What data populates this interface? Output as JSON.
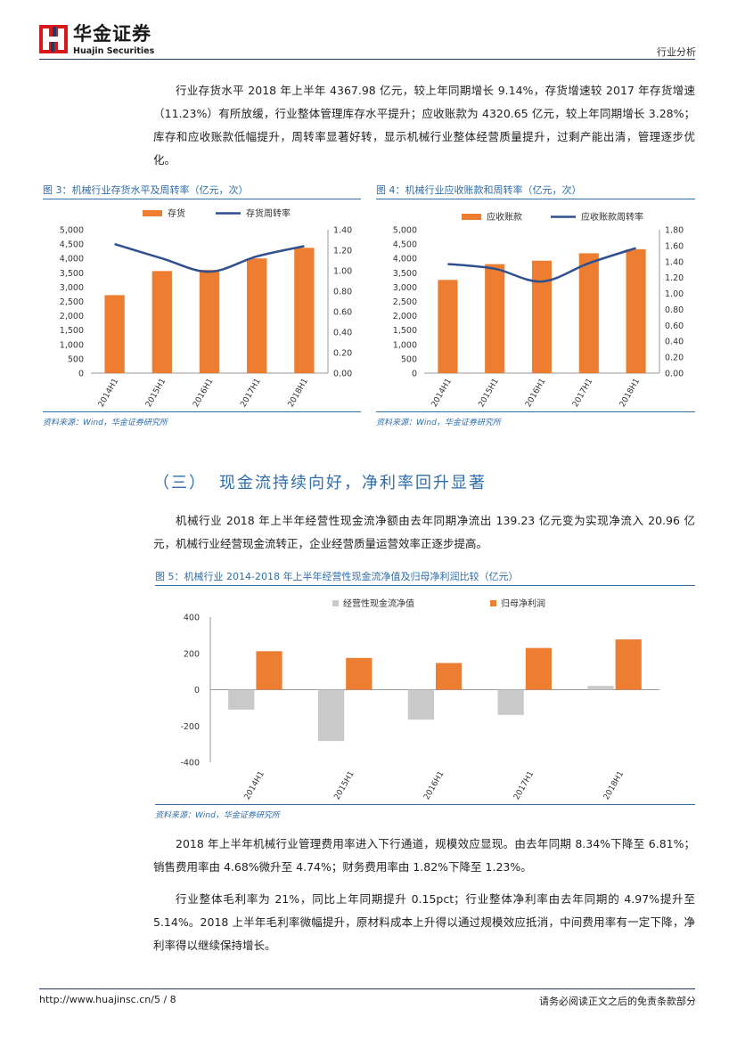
{
  "header": {
    "logo_cn": "华金证券",
    "logo_en": "Huajin Securities",
    "right_label": "行业分析"
  },
  "intro_paragraph": "行业存货水平 2018 年上半年 4367.98 亿元，较上年同期增长 9.14%，存货增速较 2017 年存货增速（11.23%）有所放缓，行业整体管理库存水平提升；应收账款为 4320.65 亿元，较上年同期增长 3.28%；库存和应收账款低幅提升，周转率显著好转，显示机械行业整体经营质量提升，过剩产能出清，管理逐步优化。",
  "figures": {
    "fig3": {
      "title": "图 3：机械行业存货水平及周转率（亿元，次）",
      "source": "资料来源：Wind，华金证券研究所"
    },
    "fig4": {
      "title": "图 4：机械行业应收账款和周转率（亿元，次）",
      "source": "资料来源：Wind，华金证券研究所"
    },
    "fig5": {
      "title": "图 5：机械行业 2014-2018 年上半年经营性现金流净值及归母净利润比较（亿元）",
      "source": "资料来源：Wind，华金证券研究所"
    }
  },
  "section": {
    "number": "（三）",
    "title": "现金流持续向好，净利率回升显著"
  },
  "cashflow_paragraph": "机械行业 2018 年上半年经营性现金流净额由去年同期净流出 139.23 亿元变为实现净流入 20.96 亿元，机械行业经营现金流转正，企业经营质量运营效率正逐步提高。",
  "paragraph_3": "2018 年上半年机械行业管理费用率进入下行通道，规模效应显现。由去年同期 8.34%下降至 6.81%；销售费用率由 4.68%微升至 4.74%；财务费用率由 1.82%下降至 1.23%。",
  "paragraph_4": "行业整体毛利率为 21%，同比上年同期提升 0.15pct；行业整体净利率由去年同期的 4.97%提升至 5.14%。2018 上半年毛利率微幅提升，原材料成本上升得以通过规模效应抵消，中间费用率有一定下降，净利率得以继续保持增长。",
  "footer": {
    "url": "http://www.huajinsc.cn/",
    "page": "5 / 8",
    "disclaimer": "请务必阅读正文之后的免责条款部分"
  },
  "colors": {
    "orange": "#ed7d31",
    "navy": "#2f4f8f",
    "gray": "#c9c9c9",
    "accent": "#2f6eaa",
    "logo_red": "#d7191c",
    "logo_blue": "#1f3864"
  },
  "chart_data": [
    {
      "id": "fig3",
      "type": "bar",
      "categories": [
        "2014H1",
        "2015H1",
        "2016H1",
        "2017H1",
        "2018H1"
      ],
      "series": [
        {
          "name": "存货",
          "type": "bar",
          "axis": "left",
          "values": [
            2720,
            3560,
            3600,
            4000,
            4368
          ]
        },
        {
          "name": "存货周转率",
          "type": "line",
          "axis": "right",
          "values": [
            1.26,
            1.12,
            0.99,
            1.14,
            1.24
          ]
        }
      ],
      "ylim": [
        0,
        5000
      ],
      "yticks": [
        "0",
        "500",
        "1,000",
        "1,500",
        "2,000",
        "2,500",
        "3,000",
        "3,500",
        "4,000",
        "4,500",
        "5,000"
      ],
      "y2lim": [
        0,
        1.4
      ],
      "y2ticks": [
        "0.00",
        "0.20",
        "0.40",
        "0.60",
        "0.80",
        "1.00",
        "1.20",
        "1.40"
      ],
      "legend": "top",
      "grid": false
    },
    {
      "id": "fig4",
      "type": "bar",
      "categories": [
        "2014H1",
        "2015H1",
        "2016H1",
        "2017H1",
        "2018H1"
      ],
      "series": [
        {
          "name": "应收账款",
          "type": "bar",
          "axis": "left",
          "values": [
            3250,
            3800,
            3920,
            4180,
            4321
          ]
        },
        {
          "name": "应收账款周转率",
          "type": "line",
          "axis": "right",
          "values": [
            1.37,
            1.31,
            1.15,
            1.38,
            1.57
          ]
        }
      ],
      "ylim": [
        0,
        5000
      ],
      "yticks": [
        "0",
        "500",
        "1,000",
        "1,500",
        "2,000",
        "2,500",
        "3,000",
        "3,500",
        "4,000",
        "4,500",
        "5,000"
      ],
      "y2lim": [
        0,
        1.8
      ],
      "y2ticks": [
        "0.00",
        "0.20",
        "0.40",
        "0.60",
        "0.80",
        "1.00",
        "1.20",
        "1.40",
        "1.60",
        "1.80"
      ],
      "legend": "top",
      "grid": false
    },
    {
      "id": "fig5",
      "type": "bar",
      "categories": [
        "2014H1",
        "2015H1",
        "2016H1",
        "2017H1",
        "2018H1"
      ],
      "series": [
        {
          "name": "经营性现金流净值",
          "values": [
            -110,
            -283,
            -165,
            -139.23,
            20.96
          ]
        },
        {
          "name": "归母净利润",
          "values": [
            212,
            175,
            147,
            230,
            277
          ]
        }
      ],
      "ylim": [
        -400,
        400
      ],
      "yticks": [
        "-400",
        "-200",
        "0",
        "200",
        "400"
      ],
      "legend": "top",
      "grid": false
    }
  ]
}
